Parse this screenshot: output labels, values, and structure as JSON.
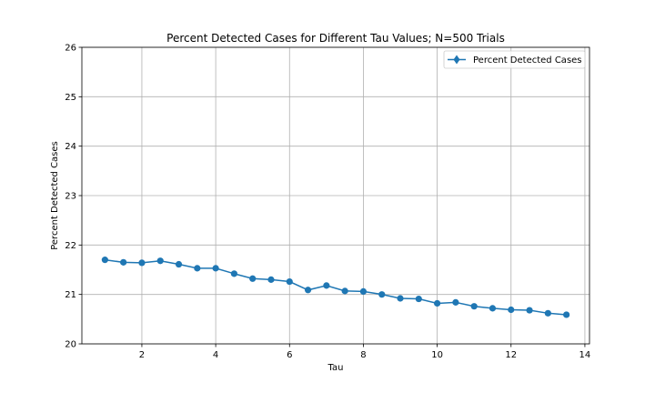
{
  "chart_data": {
    "type": "line",
    "title": "Percent Detected Cases for Different Tau Values; N=500 Trials",
    "xlabel": "Tau",
    "ylabel": "Percent Detected Cases",
    "xlim": [
      0.375,
      14.125
    ],
    "ylim": [
      20,
      26
    ],
    "xticks": [
      2,
      4,
      6,
      8,
      10,
      12,
      14
    ],
    "yticks": [
      20,
      21,
      22,
      23,
      24,
      25,
      26
    ],
    "grid": true,
    "legend_position": "top-right",
    "series": [
      {
        "name": "Percent Detected Cases",
        "color": "#1f77b4",
        "marker": "circle",
        "x": [
          1.0,
          1.5,
          2.0,
          2.5,
          3.0,
          3.5,
          4.0,
          4.5,
          5.0,
          5.5,
          6.0,
          6.5,
          7.0,
          7.5,
          8.0,
          8.5,
          9.0,
          9.5,
          10.0,
          10.5,
          11.0,
          11.5,
          12.0,
          12.5,
          13.0,
          13.5
        ],
        "y": [
          21.7,
          21.65,
          21.64,
          21.68,
          21.61,
          21.53,
          21.53,
          21.42,
          21.32,
          21.3,
          21.26,
          21.09,
          21.18,
          21.07,
          21.06,
          21.0,
          20.92,
          20.91,
          20.82,
          20.84,
          20.76,
          20.72,
          20.69,
          20.68,
          20.62,
          20.59
        ]
      }
    ]
  }
}
